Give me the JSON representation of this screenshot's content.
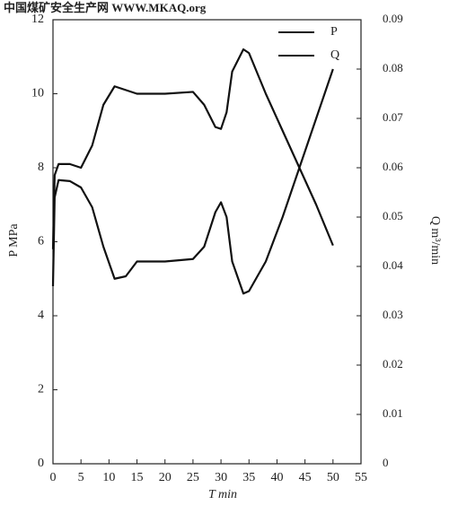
{
  "chart_data": {
    "type": "line",
    "source": "中国煤矿安全生产网 WWW.MKAQ.org",
    "xlabel": "T min",
    "ylabel": "P MPa",
    "y2label": "Q m³/min",
    "x": [
      0,
      0.3,
      1,
      3,
      5,
      7,
      9,
      11,
      13,
      15,
      20,
      25,
      27,
      29,
      30,
      31,
      32,
      34,
      35,
      38,
      41,
      44,
      47,
      50
    ],
    "series": [
      {
        "name": "P",
        "color": "#111111",
        "axis": "y",
        "values": [
          5.8,
          7.8,
          8.1,
          8.1,
          8.0,
          8.6,
          9.7,
          10.2,
          10.1,
          10.0,
          10.0,
          10.05,
          9.7,
          9.1,
          9.05,
          9.5,
          10.6,
          11.2,
          11.1,
          10.0,
          9.0,
          8.0,
          7.0,
          5.9
        ]
      },
      {
        "name": "Q",
        "color": "#111111",
        "axis": "y2",
        "values": [
          0.036,
          0.054,
          0.0575,
          0.0573,
          0.056,
          0.052,
          0.044,
          0.0375,
          0.038,
          0.041,
          0.041,
          0.0415,
          0.044,
          0.051,
          0.053,
          0.05,
          0.041,
          0.0345,
          0.035,
          0.041,
          0.05,
          0.06,
          0.07,
          0.08
        ]
      }
    ],
    "xlim": [
      0,
      55
    ],
    "xticks": [
      0,
      5,
      10,
      15,
      20,
      25,
      30,
      35,
      40,
      45,
      50,
      55
    ],
    "ylim": [
      0,
      12
    ],
    "yticks": [
      0,
      2,
      4,
      6,
      8,
      10,
      12
    ],
    "y2lim": [
      0,
      0.09
    ],
    "y2ticks": [
      0,
      0.01,
      0.02,
      0.03,
      0.04,
      0.05,
      0.06,
      0.07,
      0.08,
      0.09
    ],
    "grid": false,
    "legend": "upper right"
  }
}
